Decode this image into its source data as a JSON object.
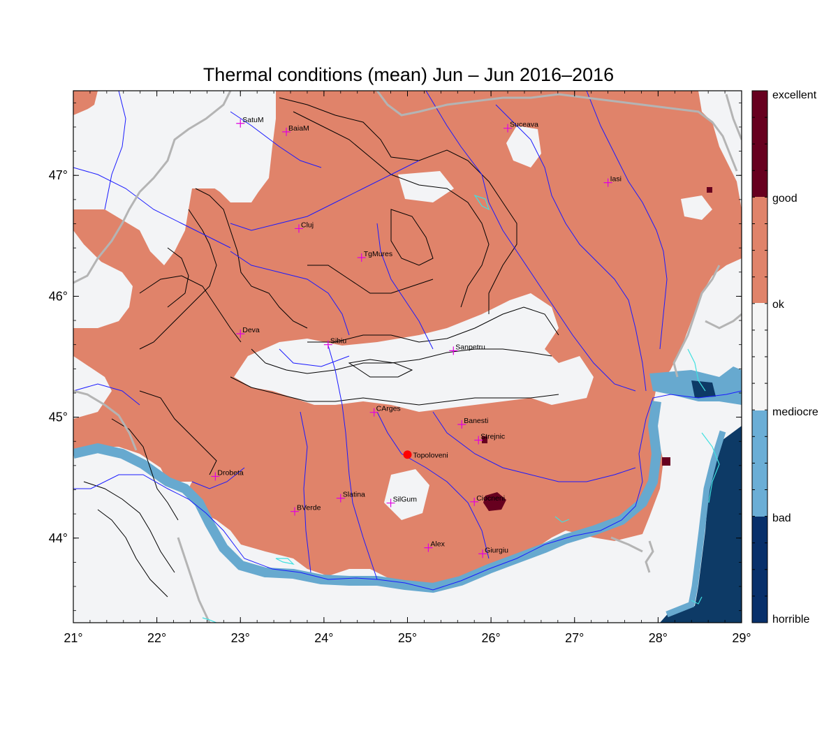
{
  "title": "Thermal conditions (mean) Jun – Jun  2016–2016",
  "map": {
    "lon_range": [
      21,
      29
    ],
    "lat_range": [
      43.3,
      47.7
    ],
    "x_ticks": [
      {
        "value": 21,
        "label": "21°"
      },
      {
        "value": 22,
        "label": "22°"
      },
      {
        "value": 23,
        "label": "23°"
      },
      {
        "value": 24,
        "label": "24°"
      },
      {
        "value": 25,
        "label": "25°"
      },
      {
        "value": 26,
        "label": "26°"
      },
      {
        "value": 27,
        "label": "27°"
      },
      {
        "value": 28,
        "label": "28°"
      },
      {
        "value": 29,
        "label": "29°"
      }
    ],
    "y_ticks": [
      {
        "value": 44,
        "label": "44°"
      },
      {
        "value": 45,
        "label": "45°"
      },
      {
        "value": 46,
        "label": "46°"
      },
      {
        "value": 47,
        "label": "47°"
      }
    ],
    "cities": [
      {
        "name": "SatuM",
        "lon": 23.0,
        "lat": 47.43
      },
      {
        "name": "BaiaM",
        "lon": 23.55,
        "lat": 47.36
      },
      {
        "name": "Suceava",
        "lon": 26.2,
        "lat": 47.39
      },
      {
        "name": "Iasi",
        "lon": 27.4,
        "lat": 46.94
      },
      {
        "name": "Cluj",
        "lon": 23.7,
        "lat": 46.56
      },
      {
        "name": "TgMures",
        "lon": 24.45,
        "lat": 46.32
      },
      {
        "name": "Deva",
        "lon": 23.0,
        "lat": 45.69
      },
      {
        "name": "Sibiu",
        "lon": 24.05,
        "lat": 45.6
      },
      {
        "name": "Sanpetru",
        "lon": 25.55,
        "lat": 45.55
      },
      {
        "name": "CArges",
        "lon": 24.6,
        "lat": 45.04
      },
      {
        "name": "Banesti",
        "lon": 25.65,
        "lat": 44.94
      },
      {
        "name": "Strejnic",
        "lon": 25.85,
        "lat": 44.81
      },
      {
        "name": "Topoloveni",
        "lon": 25.0,
        "lat": 44.69,
        "highlight": true
      },
      {
        "name": "Drobeta",
        "lon": 22.7,
        "lat": 44.51
      },
      {
        "name": "Slatina",
        "lon": 24.2,
        "lat": 44.33
      },
      {
        "name": "SilGum",
        "lon": 24.8,
        "lat": 44.29
      },
      {
        "name": "Ciocneni",
        "lon": 25.8,
        "lat": 44.3
      },
      {
        "name": "BVerde",
        "lon": 23.65,
        "lat": 44.22
      },
      {
        "name": "Alex",
        "lon": 25.25,
        "lat": 43.92
      },
      {
        "name": "Giurgiu",
        "lon": 25.9,
        "lat": 43.87
      }
    ]
  },
  "legend": {
    "classes": [
      {
        "label": "excellent",
        "color": "#67001f"
      },
      {
        "label": "good",
        "color": "#e0836a"
      },
      {
        "label": "ok",
        "color": "#f5f5f5"
      },
      {
        "label": "mediocre",
        "color": "#6baed6"
      },
      {
        "label": "bad",
        "color": "#08306b"
      },
      {
        "label": "horrible",
        "color": "#08306b"
      }
    ]
  },
  "colors": {
    "good_fill": "#e0836a",
    "ok_fill": "#f3f4f6",
    "mediocre_fill": "#67a9cf",
    "bad_fill": "#0d3a66",
    "excellent_fill": "#67001f",
    "river": "#1a1aff",
    "border": "#b4b4b4",
    "contour": "#000000",
    "city_marker": "#e000e0",
    "topoloveni_dot": "#ff0000"
  }
}
